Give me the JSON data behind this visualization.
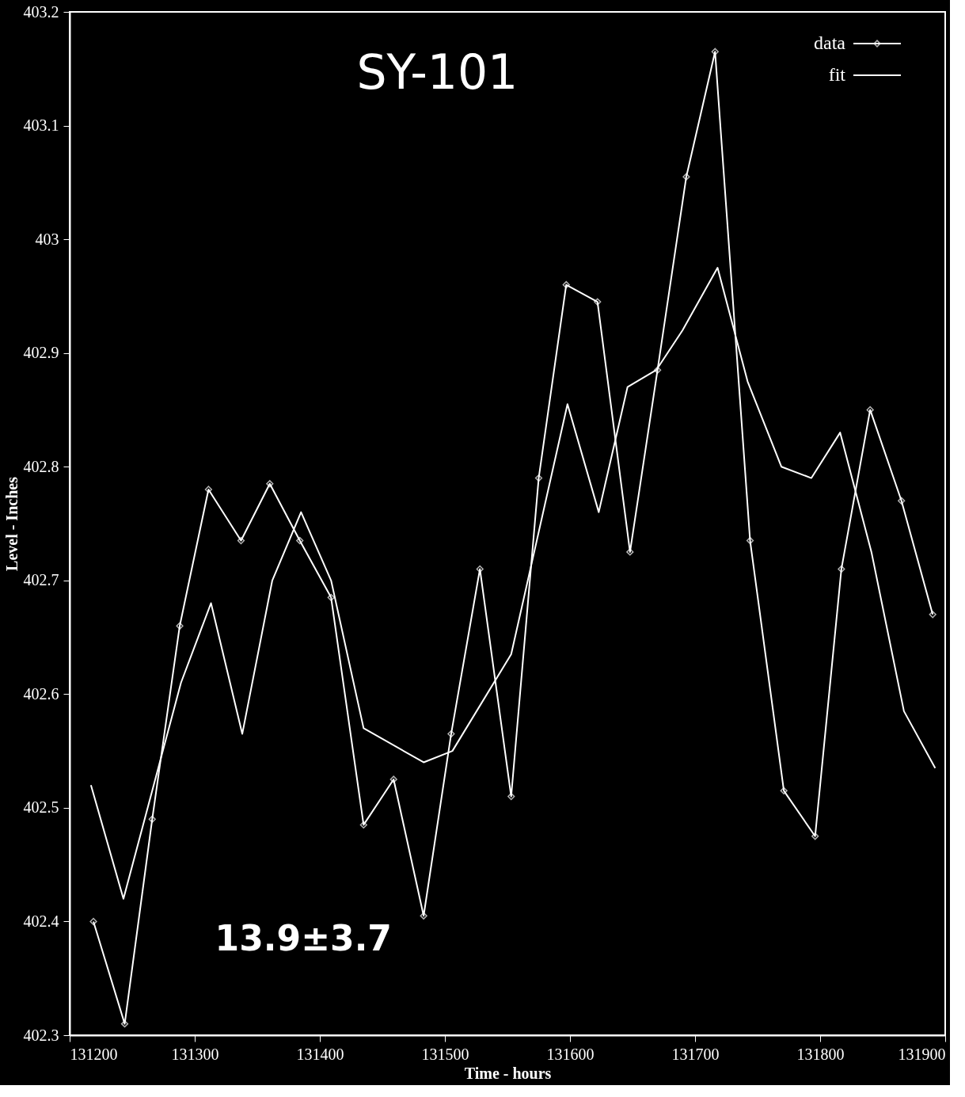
{
  "chart_data": {
    "type": "line",
    "title": "SY-101",
    "xlabel": "Time - hours",
    "ylabel": "Level - Inches",
    "xlim": [
      131200,
      131900
    ],
    "ylim": [
      402.3,
      403.2
    ],
    "xticks": [
      131200,
      131300,
      131400,
      131500,
      131600,
      131700,
      131800,
      131900
    ],
    "yticks": [
      402.3,
      402.4,
      402.5,
      402.6,
      402.7,
      402.8,
      402.9,
      403,
      403.1,
      403.2
    ],
    "grid": false,
    "legend": "top right",
    "annotations": [
      "13.9±3.7"
    ],
    "series": [
      {
        "name": "data",
        "color": "#ffffff",
        "marker": "diamond",
        "x": [
          131219,
          131244,
          131266,
          131288,
          131311,
          131337,
          131360,
          131384,
          131409,
          131435,
          131459,
          131483,
          131505,
          131528,
          131553,
          131575,
          131597,
          131622,
          131648,
          131670,
          131693,
          131716,
          131744,
          131771,
          131796,
          131817,
          131840,
          131865,
          131890
        ],
        "values": [
          402.4,
          402.31,
          402.49,
          402.66,
          402.78,
          402.735,
          402.785,
          402.735,
          402.685,
          402.485,
          402.525,
          402.405,
          402.565,
          402.71,
          402.51,
          402.79,
          402.96,
          402.945,
          402.725,
          402.885,
          403.055,
          403.165,
          402.735,
          402.515,
          402.475,
          402.71,
          402.85,
          402.77,
          402.67
        ]
      },
      {
        "name": "fit",
        "color": "#ffffff",
        "marker": "none",
        "x": [
          131217,
          131243,
          131289,
          131313,
          131338,
          131362,
          131385,
          131409,
          131435,
          131483,
          131506,
          131553,
          131598,
          131623,
          131646,
          131669,
          131690,
          131718,
          131742,
          131769,
          131793,
          131816,
          131841,
          131867,
          131892
        ],
        "values": [
          402.52,
          402.42,
          402.61,
          402.68,
          402.565,
          402.7,
          402.76,
          402.7,
          402.57,
          402.54,
          402.55,
          402.635,
          402.855,
          402.76,
          402.87,
          402.885,
          402.92,
          402.975,
          402.875,
          402.8,
          402.79,
          402.83,
          402.725,
          402.585,
          402.535
        ]
      }
    ]
  }
}
